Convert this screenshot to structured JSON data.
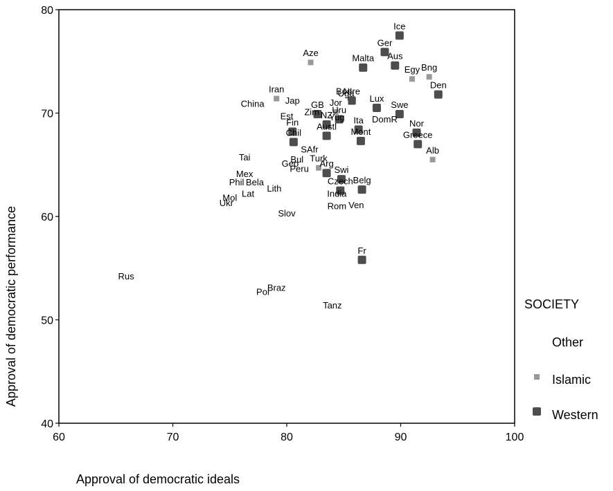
{
  "chart_data": {
    "type": "scatter",
    "title": "",
    "xlabel": "Approval of democratic ideals",
    "ylabel": "Approval of democratic performance",
    "xlim": [
      60,
      100
    ],
    "ylim": [
      40,
      80
    ],
    "x_ticks": [
      "60",
      "70",
      "80",
      "90",
      "100"
    ],
    "y_ticks": [
      "40",
      "50",
      "60",
      "70",
      "80"
    ],
    "grid": false,
    "legend": {
      "title": "SOCIETY",
      "placement": "right",
      "entries": [
        {
          "name": "Other",
          "marker": "none",
          "color": "#ffffff"
        },
        {
          "name": "Islamic",
          "marker": "square-small",
          "color": "#999999"
        },
        {
          "name": "Western",
          "marker": "square-rounded",
          "color": "#4d4d4d"
        }
      ]
    },
    "points": [
      {
        "label": "Ice",
        "x": 89.9,
        "y": 77.5,
        "group": "Western"
      },
      {
        "label": "Ger",
        "x": 88.6,
        "y": 75.9,
        "group": "Western"
      },
      {
        "label": "Aus",
        "x": 89.5,
        "y": 74.6,
        "group": "Western"
      },
      {
        "label": "Malta",
        "x": 86.7,
        "y": 74.4,
        "group": "Western"
      },
      {
        "label": "Aze",
        "x": 82.1,
        "y": 74.9,
        "group": "Islamic"
      },
      {
        "label": "Egy",
        "x": 91.0,
        "y": 73.3,
        "group": "Islamic"
      },
      {
        "label": "Bng",
        "x": 92.5,
        "y": 73.5,
        "group": "Islamic"
      },
      {
        "label": "Den",
        "x": 93.3,
        "y": 71.8,
        "group": "Western"
      },
      {
        "label": "Bos",
        "x": 85.0,
        "y": 71.2,
        "group": "Other"
      },
      {
        "label": "NIre",
        "x": 85.7,
        "y": 71.2,
        "group": "Western"
      },
      {
        "label": "Iran",
        "x": 79.1,
        "y": 71.4,
        "group": "Islamic"
      },
      {
        "label": "Uga",
        "x": 85.2,
        "y": 71.0,
        "group": "Other"
      },
      {
        "label": "Lux",
        "x": 87.9,
        "y": 70.5,
        "group": "Western"
      },
      {
        "label": "Swe",
        "x": 89.9,
        "y": 69.9,
        "group": "Western"
      },
      {
        "label": "Jap",
        "x": 80.5,
        "y": 70.3,
        "group": "Other"
      },
      {
        "label": "GB",
        "x": 82.7,
        "y": 69.9,
        "group": "Western"
      },
      {
        "label": "Jor",
        "x": 84.3,
        "y": 70.1,
        "group": "Islamic"
      },
      {
        "label": "China",
        "x": 77.0,
        "y": 70.0,
        "group": "Other"
      },
      {
        "label": "Uru",
        "x": 84.6,
        "y": 69.4,
        "group": "Western"
      },
      {
        "label": "Zim",
        "x": 82.2,
        "y": 69.2,
        "group": "Other"
      },
      {
        "label": "NZ",
        "x": 83.5,
        "y": 68.9,
        "group": "Western"
      },
      {
        "label": "Est",
        "x": 80.0,
        "y": 68.8,
        "group": "Other"
      },
      {
        "label": "DomR",
        "x": 88.6,
        "y": 68.5,
        "group": "Other"
      },
      {
        "label": "Ita",
        "x": 86.3,
        "y": 68.4,
        "group": "Western"
      },
      {
        "label": "Yug",
        "x": 84.4,
        "y": 68.7,
        "group": "Other"
      },
      {
        "label": "Fin",
        "x": 80.5,
        "y": 68.2,
        "group": "Western"
      },
      {
        "label": "Nor",
        "x": 91.4,
        "y": 68.1,
        "group": "Western"
      },
      {
        "label": "Chil",
        "x": 80.6,
        "y": 67.2,
        "group": "Western"
      },
      {
        "label": "Greece",
        "x": 91.5,
        "y": 67.0,
        "group": "Western"
      },
      {
        "label": "Alb",
        "x": 92.8,
        "y": 65.5,
        "group": "Islamic"
      },
      {
        "label": "Mont",
        "x": 86.5,
        "y": 67.3,
        "group": "Western"
      },
      {
        "label": "Austl",
        "x": 83.5,
        "y": 67.8,
        "group": "Western"
      },
      {
        "label": "SAfr",
        "x": 82.0,
        "y": 65.6,
        "group": "Other"
      },
      {
        "label": "Turk",
        "x": 82.8,
        "y": 64.7,
        "group": "Islamic"
      },
      {
        "label": "Arg",
        "x": 83.5,
        "y": 64.2,
        "group": "Western"
      },
      {
        "label": "Bul",
        "x": 80.9,
        "y": 64.6,
        "group": "Other"
      },
      {
        "label": "Tai",
        "x": 76.3,
        "y": 64.8,
        "group": "Other"
      },
      {
        "label": "Geo",
        "x": 80.3,
        "y": 64.2,
        "group": "Other"
      },
      {
        "label": "Peru",
        "x": 81.1,
        "y": 63.7,
        "group": "Other"
      },
      {
        "label": "Swi",
        "x": 84.8,
        "y": 63.6,
        "group": "Western"
      },
      {
        "label": "Belg",
        "x": 86.6,
        "y": 62.6,
        "group": "Western"
      },
      {
        "label": "Mex",
        "x": 76.3,
        "y": 63.2,
        "group": "Other"
      },
      {
        "label": "Czech",
        "x": 84.7,
        "y": 62.5,
        "group": "Western"
      },
      {
        "label": "Phil",
        "x": 75.6,
        "y": 62.4,
        "group": "Other"
      },
      {
        "label": "Bela",
        "x": 77.2,
        "y": 62.4,
        "group": "Other"
      },
      {
        "label": "Lith",
        "x": 78.9,
        "y": 61.8,
        "group": "Other"
      },
      {
        "label": "Lat",
        "x": 76.6,
        "y": 61.3,
        "group": "Other"
      },
      {
        "label": "India",
        "x": 84.4,
        "y": 61.3,
        "group": "Other"
      },
      {
        "label": "Mol",
        "x": 75.0,
        "y": 60.9,
        "group": "Other"
      },
      {
        "label": "Ukr",
        "x": 74.7,
        "y": 60.4,
        "group": "Other"
      },
      {
        "label": "Rom",
        "x": 84.4,
        "y": 60.1,
        "group": "Other"
      },
      {
        "label": "Ven",
        "x": 86.1,
        "y": 60.2,
        "group": "Other"
      },
      {
        "label": "Slov",
        "x": 80.0,
        "y": 59.4,
        "group": "Other"
      },
      {
        "label": "Fr",
        "x": 86.6,
        "y": 55.8,
        "group": "Western"
      },
      {
        "label": "Rus",
        "x": 65.9,
        "y": 53.3,
        "group": "Other"
      },
      {
        "label": "Braz",
        "x": 79.1,
        "y": 52.2,
        "group": "Other"
      },
      {
        "label": "Pol",
        "x": 77.9,
        "y": 51.8,
        "group": "Other"
      },
      {
        "label": "Tanz",
        "x": 84.0,
        "y": 50.5,
        "group": "Other"
      }
    ]
  }
}
